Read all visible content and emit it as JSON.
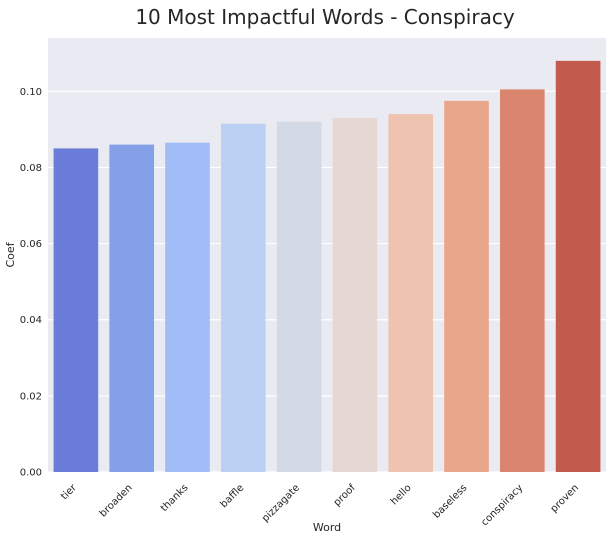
{
  "chart_data": {
    "type": "bar",
    "title": "10 Most Impactful Words - Conspiracy",
    "xlabel": "Word",
    "ylabel": "Coef",
    "categories": [
      "tier",
      "broaden",
      "thanks",
      "baffle",
      "pizzagate",
      "proof",
      "hello",
      "baseless",
      "conspiracy",
      "proven"
    ],
    "values": [
      0.085,
      0.086,
      0.0865,
      0.0915,
      0.092,
      0.093,
      0.094,
      0.0975,
      0.1005,
      0.108
    ],
    "ylim": [
      0,
      0.114
    ],
    "yticks": [
      "0.00",
      "0.02",
      "0.04",
      "0.06",
      "0.08",
      "0.10"
    ],
    "grid": true,
    "colors": [
      "#6a7dd8",
      "#84a0e6",
      "#a1bcf6",
      "#bcd0f3",
      "#d3dae6",
      "#e5d8d2",
      "#eec4b1",
      "#e9a68a",
      "#da866e",
      "#c25a4d"
    ],
    "background": "#eaeaf2"
  }
}
